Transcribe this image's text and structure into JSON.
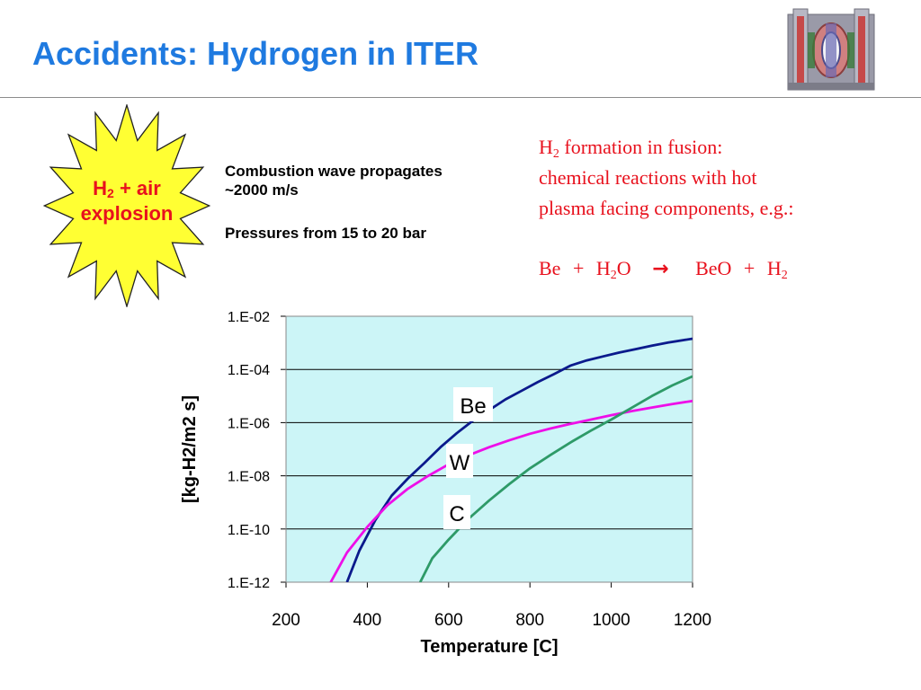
{
  "slide": {
    "title": "Accidents: Hydrogen in ITER"
  },
  "explosion": {
    "h": "H",
    "sub": "2",
    "rest": " + air",
    "line2": "explosion"
  },
  "combustion": {
    "line1": "Combustion wave propagates ~2000 m/s",
    "line2": "Pressures from 15 to 20 bar"
  },
  "formation": {
    "h": "H",
    "sub": "2",
    "line1_rest": " formation in fusion:",
    "line2": "chemical reactions with hot",
    "line3": "plasma facing components, e.g.:"
  },
  "reaction": {
    "be": "Be",
    "plus1": "+",
    "h2o_h": "H",
    "h2o_sub": "2",
    "h2o_o": "O",
    "arrow": "→",
    "beo": "BeO",
    "plus2": "+",
    "h2_h": "H",
    "h2_sub": "2"
  },
  "colors": {
    "title": "#1f7ae0",
    "accent_red": "#e8111d",
    "burst_fill": "#ffff33",
    "plot_bg": "#ccf5f7",
    "be_line": "#0b1a8c",
    "w_line": "#ee0fe8",
    "c_line": "#2e9a68"
  },
  "icons": {
    "logo": "iter-tokamak-cutaway-icon",
    "burst": "explosion-starburst-icon"
  },
  "chart_data": {
    "type": "line",
    "title": "",
    "xlabel": "Temperature [C]",
    "ylabel": "[kg-H2/m2 s]",
    "xlim": [
      200,
      1200
    ],
    "ylim": [
      1e-12,
      0.01
    ],
    "yscale": "log",
    "grid": "horizontal",
    "x_ticks": [
      200,
      400,
      600,
      800,
      1000,
      1200
    ],
    "x_tick_labels": [
      "200",
      "400",
      "600",
      "800",
      "1000",
      "1200"
    ],
    "y_ticks": [
      1e-12,
      1e-10,
      1e-08,
      1e-06,
      0.0001,
      0.01
    ],
    "y_tick_labels": [
      "1.E-12",
      "1.E-10",
      "1.E-08",
      "1.E-06",
      "1.E-04",
      "1.E-02"
    ],
    "series": [
      {
        "name": "Be",
        "x": [
          350,
          380,
          420,
          460,
          500,
          540,
          580,
          620,
          660,
          700,
          740,
          780,
          820,
          860,
          900,
          940,
          980,
          1020,
          1060,
          1100,
          1140,
          1180,
          1200
        ],
        "y": [
          1e-12,
          1.5e-11,
          2.2e-10,
          1.8e-09,
          8e-09,
          3e-08,
          1.2e-07,
          4e-07,
          1.2e-06,
          3e-06,
          7.5e-06,
          1.6e-05,
          3.4e-05,
          6.8e-05,
          0.00014,
          0.00022,
          0.00031,
          0.00043,
          0.00058,
          0.00078,
          0.00102,
          0.00128,
          0.00143
        ]
      },
      {
        "name": "W",
        "x": [
          310,
          350,
          400,
          450,
          500,
          550,
          600,
          650,
          700,
          750,
          800,
          850,
          900,
          950,
          1000,
          1050,
          1100,
          1150,
          1200
        ],
        "y": [
          1e-12,
          1.3e-11,
          1.2e-10,
          8e-10,
          3.3e-09,
          1e-08,
          2.7e-08,
          6e-08,
          1.2e-07,
          2.2e-07,
          3.8e-07,
          6e-07,
          9e-07,
          1.3e-06,
          1.9e-06,
          2.7e-06,
          3.7e-06,
          5e-06,
          6.5e-06
        ]
      },
      {
        "name": "C",
        "x": [
          530,
          560,
          600,
          650,
          700,
          750,
          800,
          850,
          900,
          950,
          1000,
          1050,
          1100,
          1150,
          1200
        ],
        "y": [
          1e-12,
          8e-12,
          4e-11,
          2.5e-10,
          1.2e-09,
          5e-09,
          1.9e-08,
          6e-08,
          1.8e-07,
          5e-07,
          1.3e-06,
          3.6e-06,
          1e-05,
          2.5e-05,
          5.5e-05
        ]
      }
    ]
  }
}
